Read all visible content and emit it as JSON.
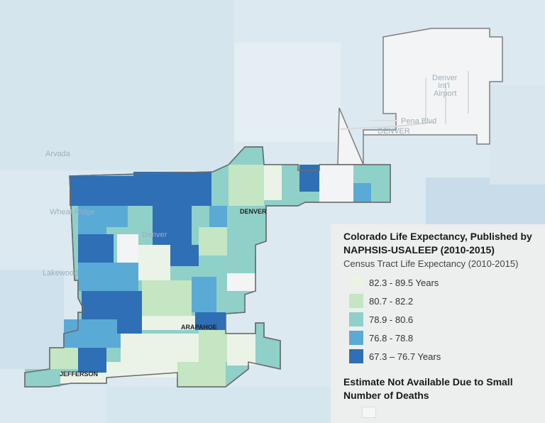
{
  "legend": {
    "title": "Colorado Life Expectancy, Published by NAPHSIS-USALEEP (2010-2015)",
    "subtitle": "Census Tract Life Expectancy (2010-2015)",
    "classes": [
      {
        "label": "82.3 - 89.5 Years",
        "color": "#eaf3e6"
      },
      {
        "label": "80.7 - 82.2",
        "color": "#c4e6c2"
      },
      {
        "label": "78.9 - 80.6",
        "color": "#8fd0c8"
      },
      {
        "label": "76.8 - 78.8",
        "color": "#5aaad6"
      },
      {
        "label": "67.3 – 76.7 Years",
        "color": "#2e6fb5"
      }
    ],
    "not_available": {
      "label": "Estimate Not Available Due to Small Number of Deaths",
      "color": "#f6f6f6"
    }
  },
  "map_labels": {
    "denver_county": "DENVER",
    "arapahoe_county": "ARAPAHOE",
    "jefferson_county": "JEFFERSON",
    "airport_1": "Denver",
    "airport_2": "Int'l",
    "airport_3": "Airport",
    "pena_blvd": "Pena Blvd",
    "denver_airport_area": "DENVER",
    "city_denver": "Denver",
    "wheat_ridge": "Wheat Ridge",
    "lakewood": "Lakewood",
    "arvada": "Arvada"
  }
}
